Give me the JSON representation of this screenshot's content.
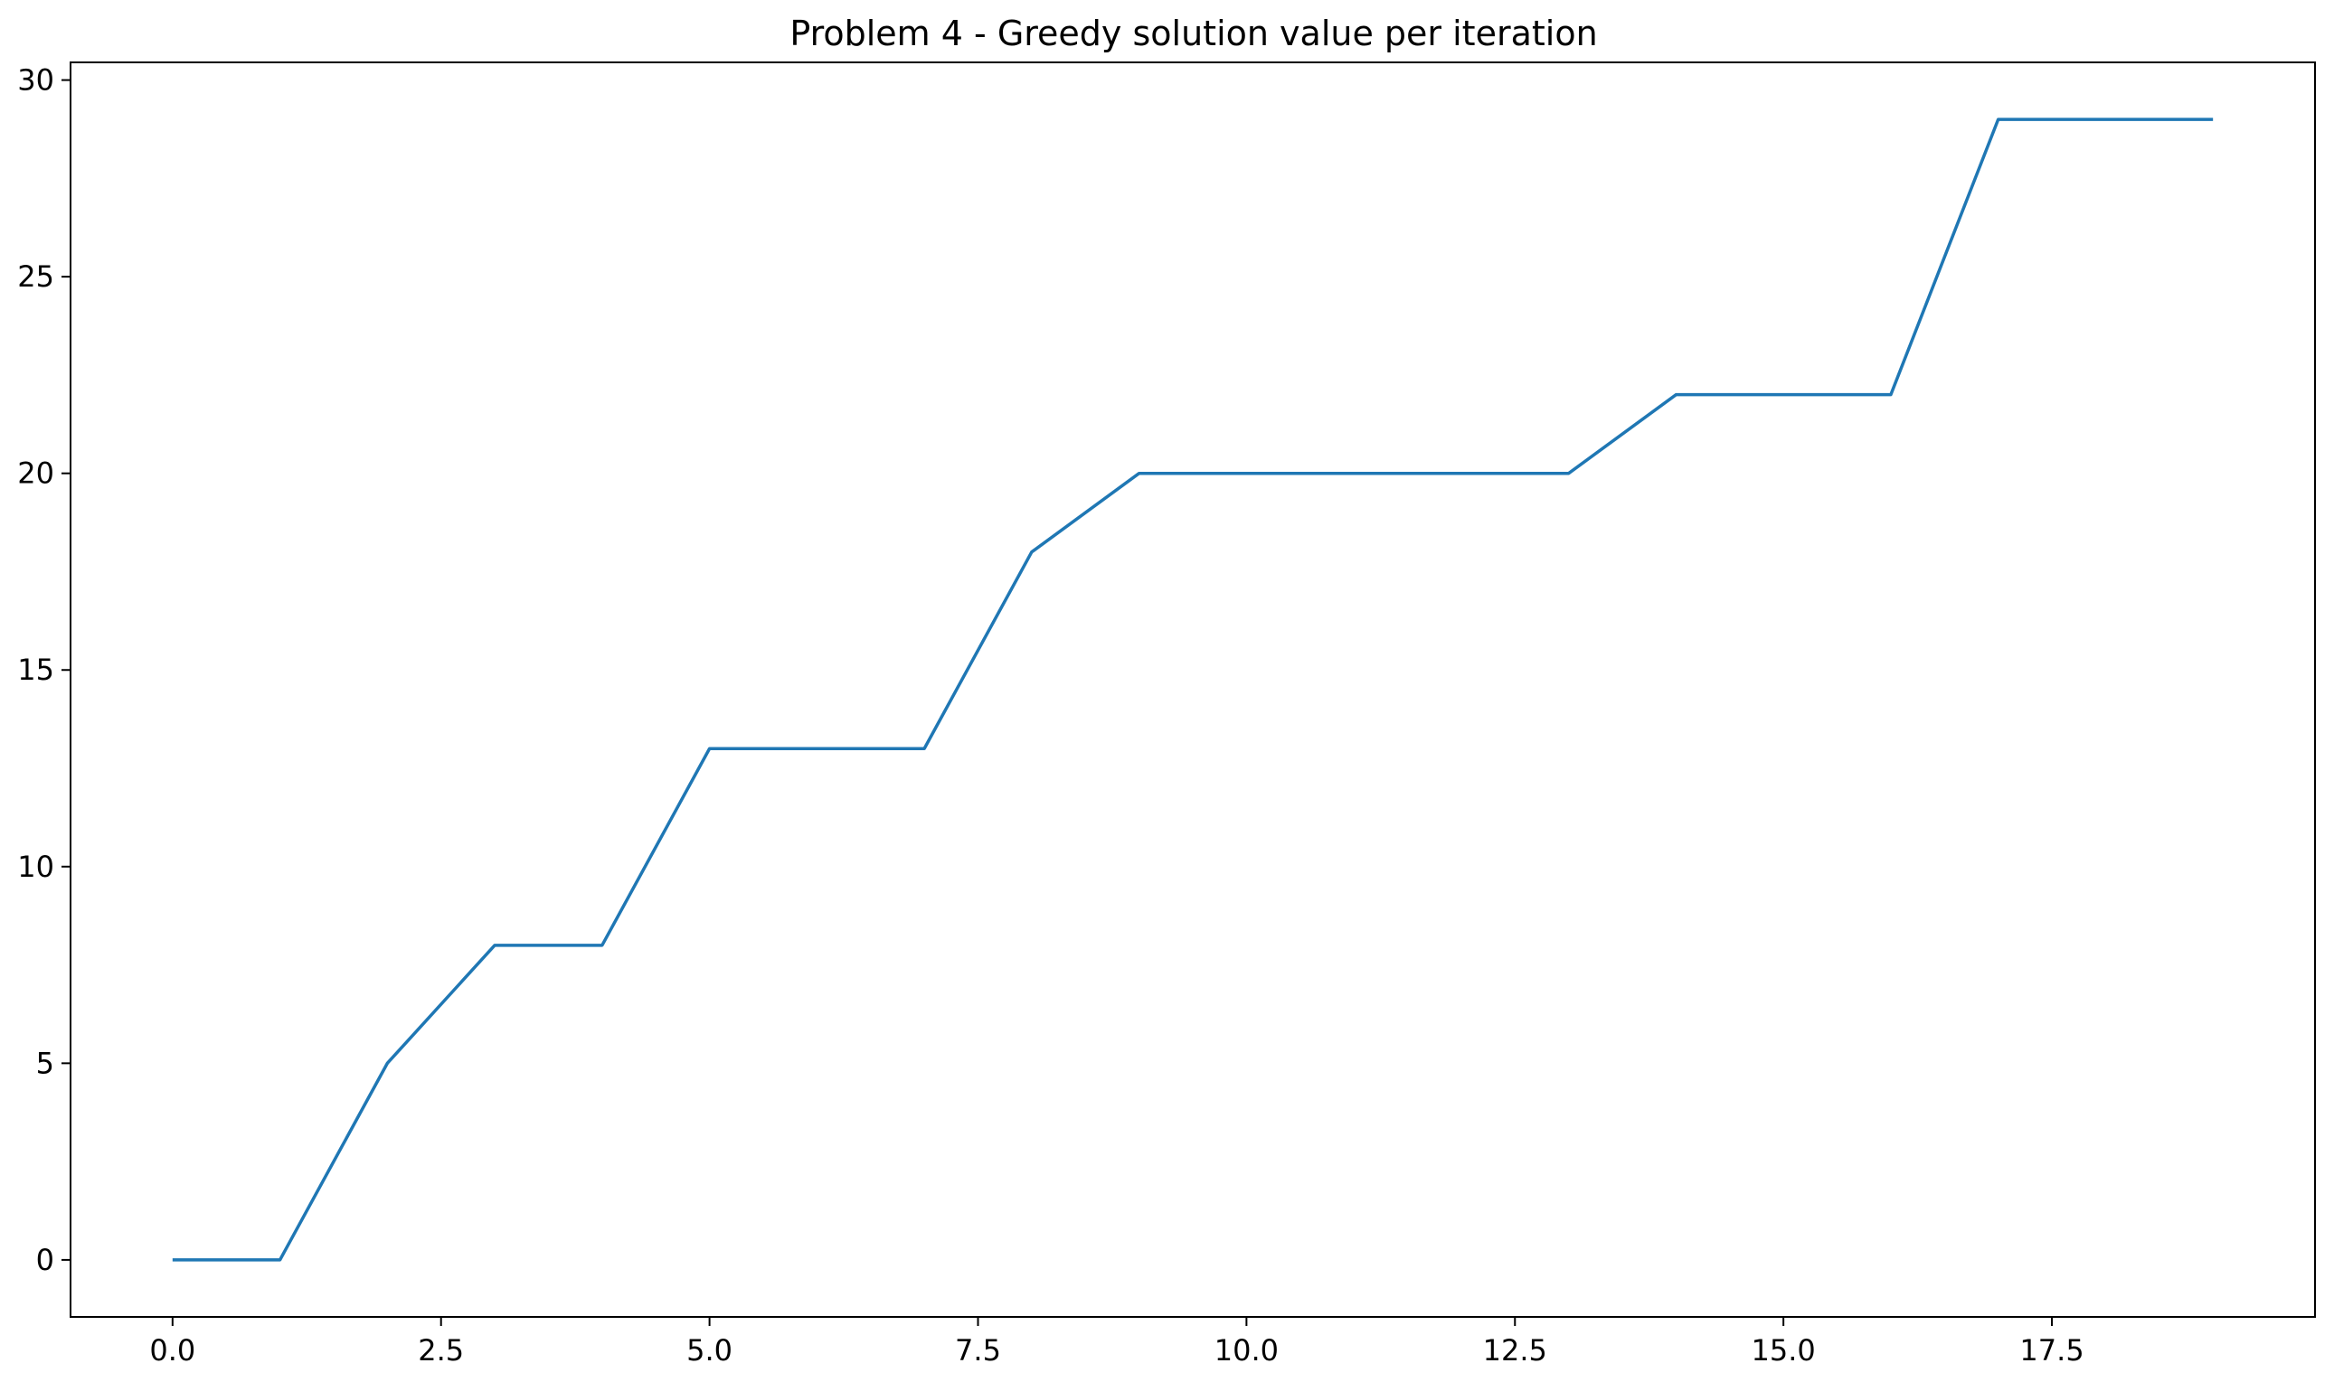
{
  "chart_data": {
    "type": "line",
    "title": "Problem 4 - Greedy solution value per iteration",
    "xlabel": "",
    "ylabel": "",
    "xlim": [
      -0.95,
      19.95
    ],
    "ylim": [
      -1.45,
      30.45
    ],
    "x_ticks": [
      0.0,
      2.5,
      5.0,
      7.5,
      10.0,
      12.5,
      15.0,
      17.5
    ],
    "x_tick_labels": [
      "0.0",
      "2.5",
      "5.0",
      "7.5",
      "10.0",
      "12.5",
      "15.0",
      "17.5"
    ],
    "y_ticks": [
      0,
      5,
      10,
      15,
      20,
      25,
      30
    ],
    "y_tick_labels": [
      "0",
      "5",
      "10",
      "15",
      "20",
      "25",
      "30"
    ],
    "grid": false,
    "legend": "none",
    "series": [
      {
        "color": "#1f77b4",
        "x": [
          0,
          1,
          2,
          3,
          4,
          5,
          6,
          7,
          8,
          9,
          10,
          11,
          12,
          13,
          14,
          15,
          16,
          17,
          18,
          19
        ],
        "y": [
          0,
          0,
          5,
          8,
          8,
          13,
          13,
          13,
          18,
          20,
          20,
          20,
          20,
          20,
          22,
          22,
          22,
          29,
          29,
          29
        ]
      }
    ]
  }
}
